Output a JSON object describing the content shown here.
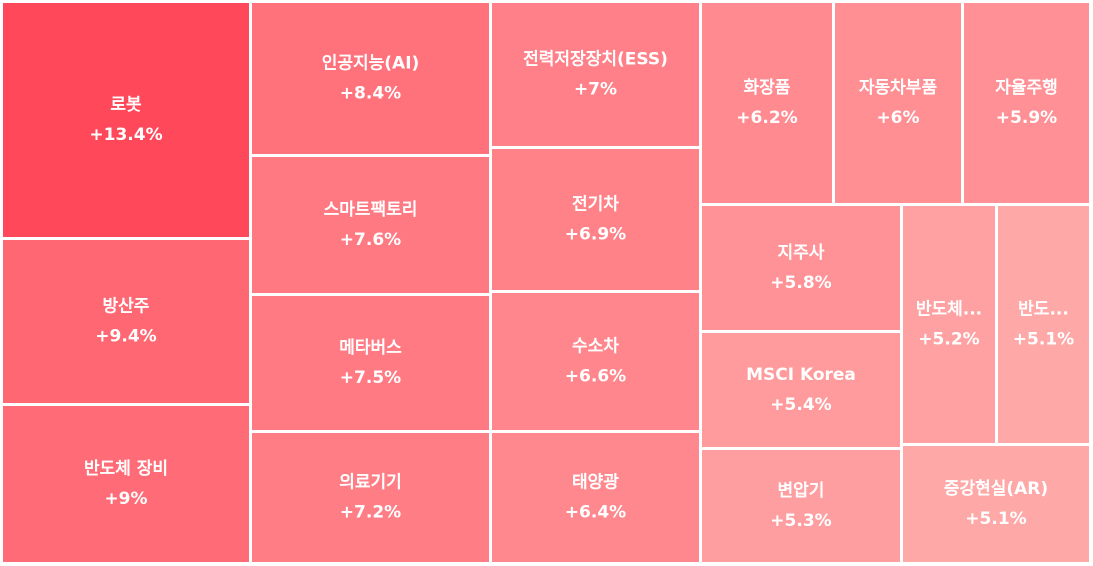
{
  "chart_data": {
    "type": "treemap",
    "categories": [
      "로봇",
      "방산주",
      "반도체 장비",
      "인공지능(AI)",
      "스마트팩토리",
      "메타버스",
      "의료기기",
      "전력저장장치(ESS)",
      "전기차",
      "수소차",
      "태양광",
      "화장품",
      "자동차부품",
      "자율주행",
      "지주사",
      "MSCI Korea",
      "변압기",
      "반도체...",
      "반도...",
      "증강현실(AR)"
    ],
    "values": [
      13.4,
      9.4,
      9,
      8.4,
      7.6,
      7.5,
      7.2,
      7,
      6.9,
      6.6,
      6.4,
      6.2,
      6,
      5.9,
      5.8,
      5.4,
      5.3,
      5.2,
      5.1,
      5.1
    ],
    "value_labels": [
      "+13.4%",
      "+9.4%",
      "+9%",
      "+8.4%",
      "+7.6%",
      "+7.5%",
      "+7.2%",
      "+7%",
      "+6.9%",
      "+6.6%",
      "+6.4%",
      "+6.2%",
      "+6%",
      "+5.9%",
      "+5.8%",
      "+5.4%",
      "+5.3%",
      "+5.2%",
      "+5.1%",
      "+5.1%"
    ]
  }
}
